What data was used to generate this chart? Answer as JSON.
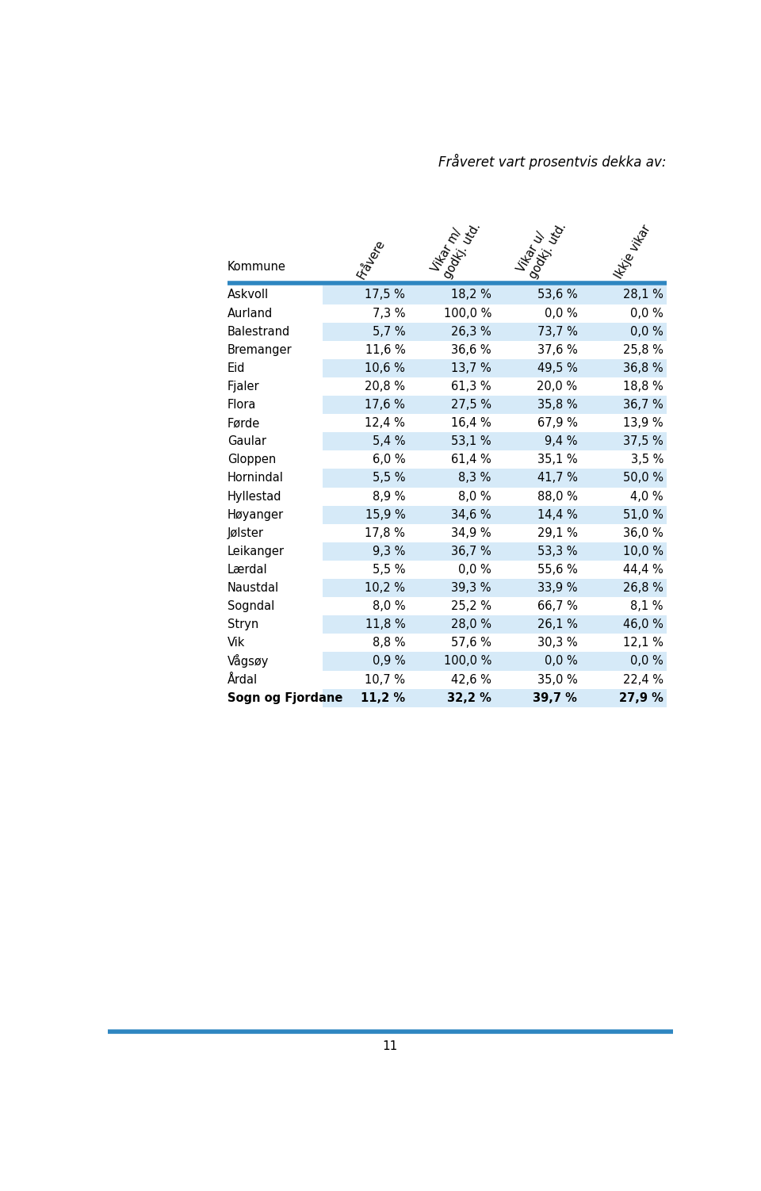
{
  "title": "Fråveret vart prosentvis dekka av:",
  "col_headers": [
    "Kommune",
    "Fråvere",
    "Vikar m/\ngodkj. utd.",
    "Vikar u/\ngodkj. utd.",
    "Ikkje vikar"
  ],
  "rows": [
    [
      "Askvoll",
      "17,5 %",
      "18,2 %",
      "53,6 %",
      "28,1 %"
    ],
    [
      "Aurland",
      "7,3 %",
      "100,0 %",
      "0,0 %",
      "0,0 %"
    ],
    [
      "Balestrand",
      "5,7 %",
      "26,3 %",
      "73,7 %",
      "0,0 %"
    ],
    [
      "Bremanger",
      "11,6 %",
      "36,6 %",
      "37,6 %",
      "25,8 %"
    ],
    [
      "Eid",
      "10,6 %",
      "13,7 %",
      "49,5 %",
      "36,8 %"
    ],
    [
      "Fjaler",
      "20,8 %",
      "61,3 %",
      "20,0 %",
      "18,8 %"
    ],
    [
      "Flora",
      "17,6 %",
      "27,5 %",
      "35,8 %",
      "36,7 %"
    ],
    [
      "Førde",
      "12,4 %",
      "16,4 %",
      "67,9 %",
      "13,9 %"
    ],
    [
      "Gaular",
      "5,4 %",
      "53,1 %",
      "9,4 %",
      "37,5 %"
    ],
    [
      "Gloppen",
      "6,0 %",
      "61,4 %",
      "35,1 %",
      "3,5 %"
    ],
    [
      "Hornindal",
      "5,5 %",
      "8,3 %",
      "41,7 %",
      "50,0 %"
    ],
    [
      "Hyllestad",
      "8,9 %",
      "8,0 %",
      "88,0 %",
      "4,0 %"
    ],
    [
      "Høyanger",
      "15,9 %",
      "34,6 %",
      "14,4 %",
      "51,0 %"
    ],
    [
      "Jølster",
      "17,8 %",
      "34,9 %",
      "29,1 %",
      "36,0 %"
    ],
    [
      "Leikanger",
      "9,3 %",
      "36,7 %",
      "53,3 %",
      "10,0 %"
    ],
    [
      "Lærdal",
      "5,5 %",
      "0,0 %",
      "55,6 %",
      "44,4 %"
    ],
    [
      "Naustdal",
      "10,2 %",
      "39,3 %",
      "33,9 %",
      "26,8 %"
    ],
    [
      "Sogndal",
      "8,0 %",
      "25,2 %",
      "66,7 %",
      "8,1 %"
    ],
    [
      "Stryn",
      "11,8 %",
      "28,0 %",
      "26,1 %",
      "46,0 %"
    ],
    [
      "Vik",
      "8,8 %",
      "57,6 %",
      "30,3 %",
      "12,1 %"
    ],
    [
      "Vågsøy",
      "0,9 %",
      "100,0 %",
      "0,0 %",
      "0,0 %"
    ],
    [
      "Årdal",
      "10,7 %",
      "42,6 %",
      "35,0 %",
      "22,4 %"
    ],
    [
      "Sogn og Fjordane",
      "11,2 %",
      "32,2 %",
      "39,7 %",
      "27,9 %"
    ]
  ],
  "bold_last_row": true,
  "header_line_color": "#2E86C1",
  "alt_row_color": "#D6EAF8",
  "white_row_color": "#FFFFFF",
  "page_number": "11",
  "bottom_line_color": "#2E86C1",
  "background_color": "#FFFFFF",
  "font_size_data": 10.5,
  "font_size_header": 10.5,
  "font_size_title": 12
}
